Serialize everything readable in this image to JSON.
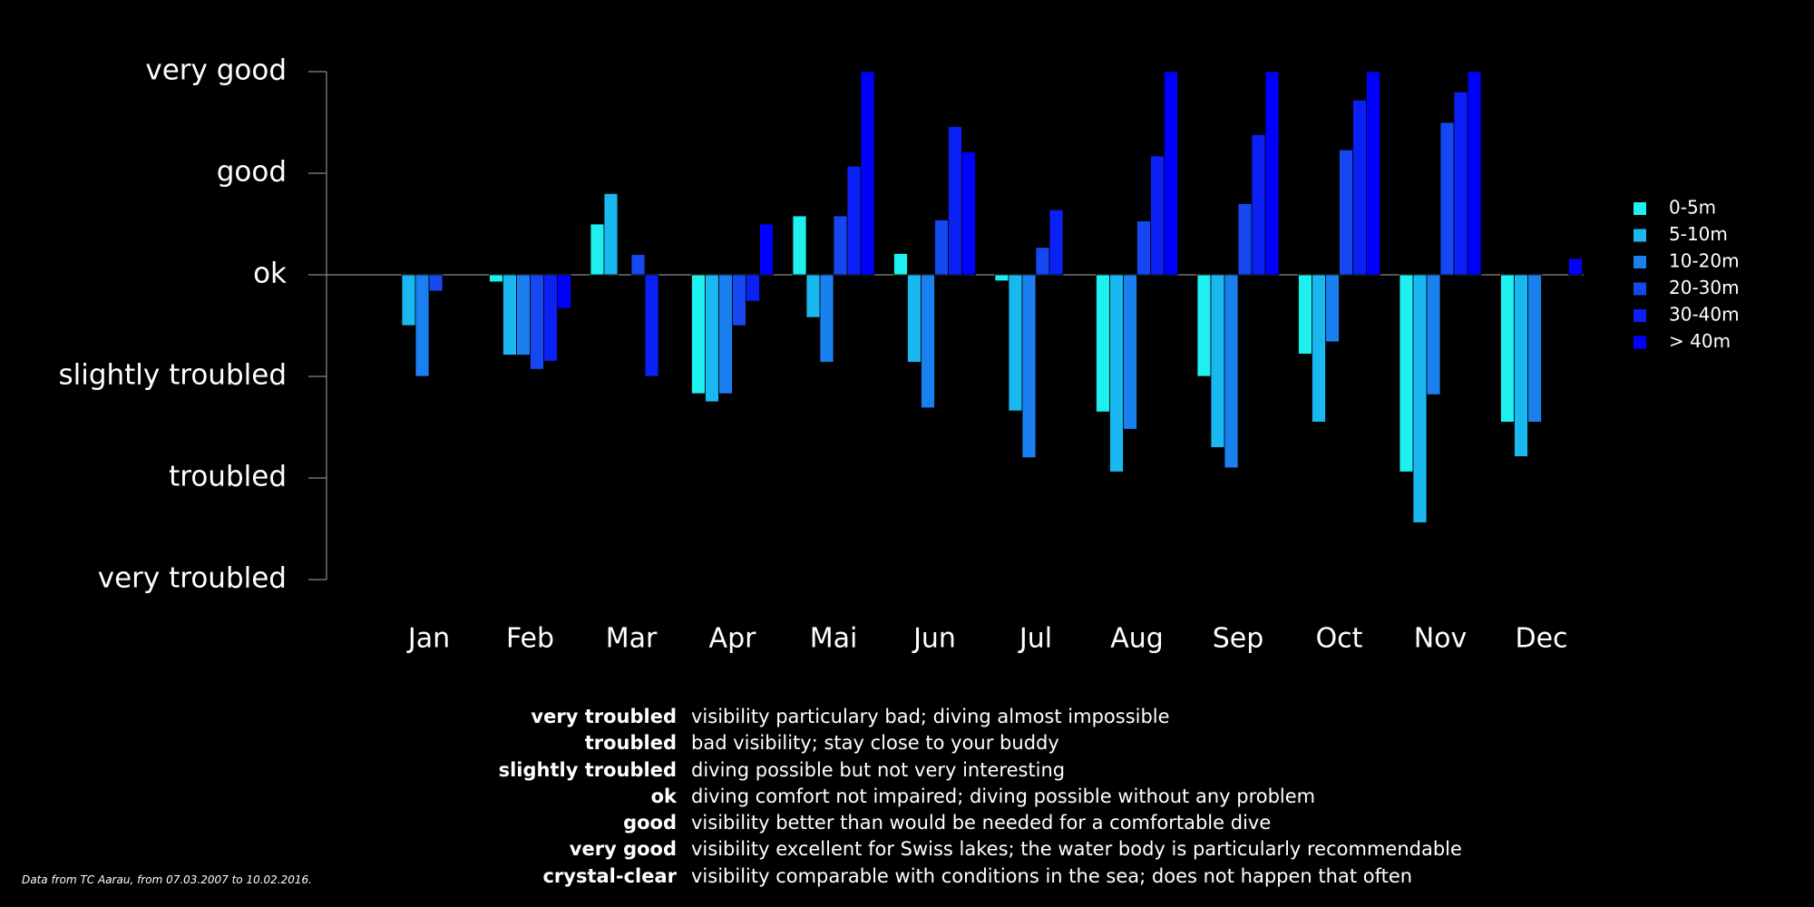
{
  "chart_data": {
    "type": "bar",
    "title": "",
    "xlabel": "",
    "ylabel": "",
    "y_levels": [
      "very troubled",
      "troubled",
      "slightly troubled",
      "ok",
      "good",
      "very good"
    ],
    "y_values": [
      -3,
      -2,
      -1,
      0,
      1,
      2
    ],
    "ylim": [
      -3,
      2
    ],
    "baseline": 0,
    "legend_position": "right",
    "grid": false,
    "categories": [
      "Jan",
      "Feb",
      "Mar",
      "Apr",
      "Mai",
      "Jun",
      "Jul",
      "Aug",
      "Sep",
      "Oct",
      "Nov",
      "Dec"
    ],
    "series": [
      {
        "name": "0-5m",
        "color": "#1ef0f0",
        "values": [
          null,
          -0.07,
          0.5,
          -1.17,
          0.58,
          0.21,
          -0.06,
          -1.35,
          -1.0,
          -0.78,
          -1.94,
          -1.45
        ]
      },
      {
        "name": "5-10m",
        "color": "#1ab8f0",
        "values": [
          -0.5,
          -0.79,
          0.8,
          -1.25,
          -0.42,
          -0.86,
          -1.34,
          -1.94,
          -1.7,
          -1.45,
          -2.44,
          -1.79
        ]
      },
      {
        "name": "10-20m",
        "color": "#1a80f0",
        "values": [
          -1.0,
          -0.79,
          null,
          -1.17,
          -0.86,
          -1.31,
          -1.8,
          -1.52,
          -1.9,
          -0.66,
          -1.18,
          -1.45
        ]
      },
      {
        "name": "20-30m",
        "color": "#1548f0",
        "values": [
          -0.16,
          -0.93,
          0.2,
          -0.5,
          0.58,
          0.54,
          0.27,
          0.53,
          0.7,
          1.23,
          1.5,
          null
        ]
      },
      {
        "name": "30-40m",
        "color": "#0a20f5",
        "values": [
          null,
          -0.85,
          -1.0,
          -0.26,
          1.07,
          1.46,
          0.64,
          1.17,
          1.38,
          1.72,
          1.8,
          null
        ]
      },
      {
        "name": "> 40m",
        "color": "#0000ff",
        "values": [
          null,
          -0.33,
          null,
          0.5,
          2.0,
          1.21,
          null,
          2.0,
          2.0,
          2.0,
          2.0,
          0.16
        ]
      }
    ]
  },
  "descriptions": [
    {
      "term": "very troubled",
      "text": "visibility particulary bad; diving almost impossible"
    },
    {
      "term": "troubled",
      "text": "bad visibility; stay close to your buddy"
    },
    {
      "term": "slightly troubled",
      "text": "diving possible but not very interesting"
    },
    {
      "term": "ok",
      "text": "diving comfort not impaired; diving possible without any problem"
    },
    {
      "term": "good",
      "text": "visibility better than would be needed for a comfortable dive"
    },
    {
      "term": "very good",
      "text": "visibility excellent for Swiss lakes; the water body is particularly recommendable"
    },
    {
      "term": "crystal-clear",
      "text": "visibility comparable with conditions in the sea; does not happen that often"
    }
  ],
  "footnote": "Data from TC Aarau, from 07.03.2007 to 10.02.2016."
}
